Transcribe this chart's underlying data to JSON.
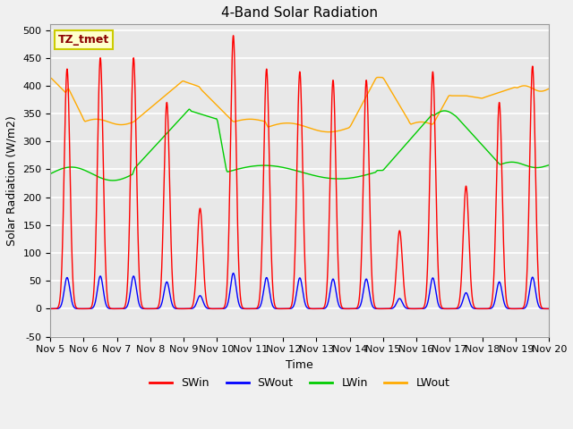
{
  "title": "4-Band Solar Radiation",
  "xlabel": "Time",
  "ylabel": "Solar Radiation (W/m2)",
  "ylim": [
    -50,
    510
  ],
  "xlim_days": [
    5,
    20
  ],
  "legend_label": "TZ_tmet",
  "series": {
    "SWin": {
      "color": "#ff0000",
      "lw": 1.0
    },
    "SWout": {
      "color": "#0000ff",
      "lw": 1.0
    },
    "LWin": {
      "color": "#00cc00",
      "lw": 1.0
    },
    "LWout": {
      "color": "#ffaa00",
      "lw": 1.0
    }
  },
  "xtick_days": [
    5,
    6,
    7,
    8,
    9,
    10,
    11,
    12,
    13,
    14,
    15,
    16,
    17,
    18,
    19,
    20
  ],
  "xtick_labels": [
    "Nov 5",
    "Nov 6",
    "Nov 7",
    "Nov 8",
    "Nov 9",
    "Nov 10",
    "Nov 11",
    "Nov 12",
    "Nov 13",
    "Nov 14",
    "Nov 15",
    "Nov 16",
    "Nov 17",
    "Nov 18",
    "Nov 19",
    "Nov 20"
  ],
  "yticks": [
    -50,
    0,
    50,
    100,
    150,
    200,
    250,
    300,
    350,
    400,
    450,
    500
  ],
  "plot_bg_color": "#e8e8e8",
  "fig_bg_color": "#f0f0f0",
  "grid_color": "#ffffff",
  "title_fontsize": 11,
  "axis_fontsize": 8,
  "legend_fontsize": 9,
  "figsize": [
    6.4,
    4.8
  ],
  "dpi": 100
}
